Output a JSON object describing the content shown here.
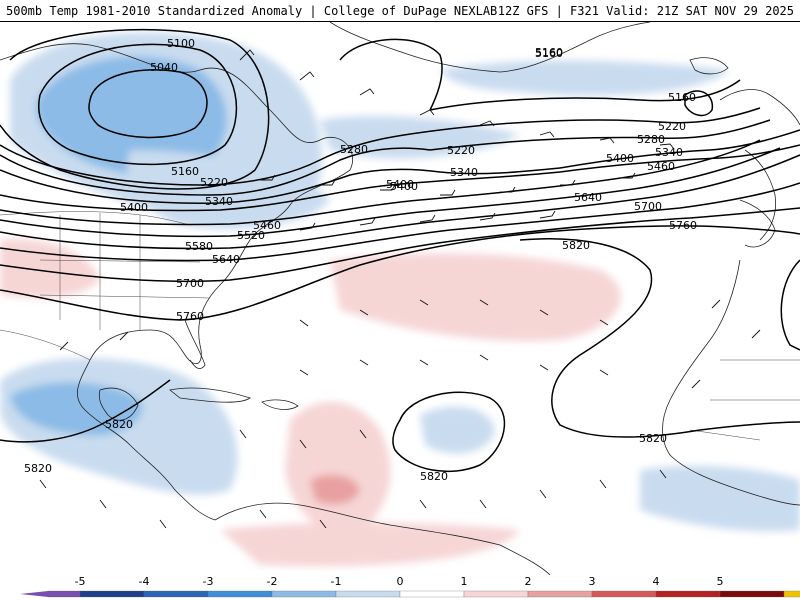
{
  "header": {
    "left": "500mb Temp 1981-2010 Standardized Anomaly | College of DuPage NEXLAB",
    "right": "12Z GFS | F321 Valid: 21Z SAT NOV 29 2025"
  },
  "colorbar": {
    "ticks": [
      "-5",
      "-4",
      "-3",
      "-2",
      "-1",
      "0",
      "1",
      "2",
      "3",
      "4",
      "5"
    ],
    "colors": [
      "#7a4fb0",
      "#1f3f8c",
      "#2a67b8",
      "#3f8fd8",
      "#8bbbe6",
      "#c9dcef",
      "#ffffff",
      "#f6d5d5",
      "#e8a0a0",
      "#d45a5a",
      "#b42222",
      "#7a0c0c",
      "#f2c200"
    ]
  },
  "contour_labels": [
    {
      "text": "5100"
    },
    {
      "text": "5040"
    },
    {
      "text": "5160"
    },
    {
      "text": "5160"
    },
    {
      "text": "5220"
    },
    {
      "text": "5280"
    },
    {
      "text": "5220"
    },
    {
      "text": "5340"
    },
    {
      "text": "5400"
    },
    {
      "text": "5400"
    },
    {
      "text": "5460"
    },
    {
      "text": "5520"
    },
    {
      "text": "5580"
    },
    {
      "text": "5640"
    },
    {
      "text": "5700"
    },
    {
      "text": "5760"
    },
    {
      "text": "5160"
    },
    {
      "text": "5160"
    },
    {
      "text": "5220"
    },
    {
      "text": "5280"
    },
    {
      "text": "5340"
    },
    {
      "text": "5400"
    },
    {
      "text": "5460"
    },
    {
      "text": "5640"
    },
    {
      "text": "5700"
    },
    {
      "text": "5760"
    },
    {
      "text": "5820"
    },
    {
      "text": "5820"
    },
    {
      "text": "5820"
    },
    {
      "text": "5820"
    },
    {
      "text": "5820"
    },
    {
      "text": "5340"
    },
    {
      "text": "5400"
    }
  ]
}
